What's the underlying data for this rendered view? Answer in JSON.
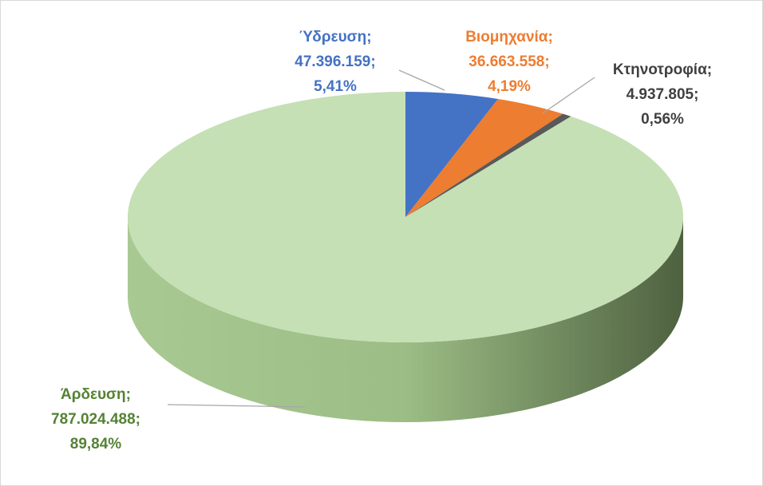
{
  "chart_data": {
    "type": "pie3d",
    "categories": [
      "Ύδρευση",
      "Βιομηχανία",
      "Κτηνοτροφία",
      "Άρδευση"
    ],
    "separator": ";",
    "values": [
      47396159,
      36663558,
      4937805,
      787024488
    ],
    "value_labels": [
      "47.396.159",
      "36.663.558",
      "4.937.805",
      "787.024.488"
    ],
    "percents": [
      5.41,
      4.19,
      0.56,
      89.84
    ],
    "percent_labels": [
      "5,41%",
      "4,19%",
      "0,56%",
      "89,84%"
    ],
    "colors": [
      "#4472c4",
      "#ed7d31",
      "#595959",
      "#c5e0b4"
    ],
    "label_colors": [
      "#4472c4",
      "#ed7d31",
      "#404040",
      "#548235"
    ]
  }
}
